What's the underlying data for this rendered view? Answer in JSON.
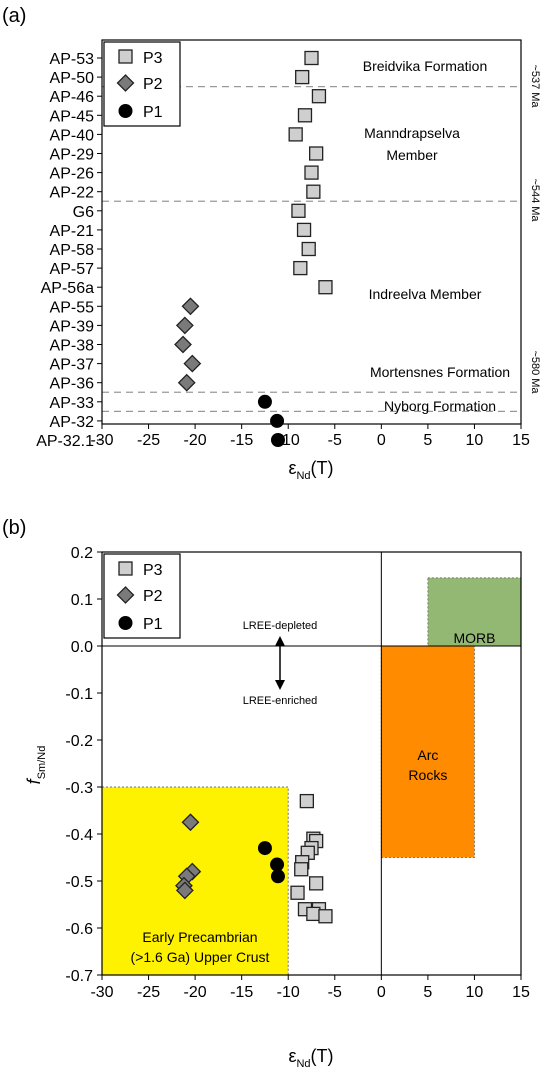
{
  "chart_data": [
    {
      "panel_label": "(a)",
      "type": "scatter",
      "xlabel": "εNd(T)",
      "xlabel_main": "ε",
      "xlabel_sub": "Nd",
      "xlabel_tail": "(T)",
      "xlim": [
        -30,
        15
      ],
      "xticks": [
        -30,
        -25,
        -20,
        -15,
        -10,
        -5,
        0,
        5,
        10,
        15
      ],
      "grid": false,
      "legend_position": "top-left",
      "samples": [
        "AP-53",
        "AP-50",
        "AP-46",
        "AP-45",
        "AP-40",
        "AP-29",
        "AP-26",
        "AP-22",
        "G6",
        "AP-21",
        "AP-58",
        "AP-57",
        "AP-56a",
        "AP-55",
        "AP-39",
        "AP-38",
        "AP-37",
        "AP-36",
        "AP-33",
        "AP-32",
        "AP-32.1"
      ],
      "series": [
        {
          "name": "P3",
          "marker": "square",
          "color": "#cfcfcf",
          "points": [
            [
              "AP-53",
              -7.5
            ],
            [
              "AP-50",
              -8.5
            ],
            [
              "AP-46",
              -6.7
            ],
            [
              "AP-45",
              -8.2
            ],
            [
              "AP-40",
              -9.2
            ],
            [
              "AP-29",
              -7.0
            ],
            [
              "AP-26",
              -7.5
            ],
            [
              "AP-22",
              -7.3
            ],
            [
              "G6",
              -8.9
            ],
            [
              "AP-21",
              -8.3
            ],
            [
              "AP-58",
              -7.8
            ],
            [
              "AP-57",
              -8.7
            ],
            [
              "AP-56a",
              -6.0
            ]
          ]
        },
        {
          "name": "P2",
          "marker": "diamond",
          "color": "#7a7a7a",
          "points": [
            [
              "AP-55",
              -20.5
            ],
            [
              "AP-39",
              -21.1
            ],
            [
              "AP-38",
              -21.3
            ],
            [
              "AP-37",
              -20.3
            ],
            [
              "AP-36",
              -20.9
            ]
          ]
        },
        {
          "name": "P1",
          "marker": "circle",
          "color": "#000000",
          "points": [
            [
              "AP-33",
              -12.5
            ],
            [
              "AP-32",
              -11.2
            ],
            [
              "AP-32.1",
              -11.1
            ]
          ]
        }
      ],
      "formation_labels": [
        "Breidvika Formation",
        "Manndrapselva",
        "Member",
        "Indreelva Member",
        "Mortensnes Formation",
        "Nyborg Formation"
      ],
      "age_labels": [
        "~537 Ma",
        "~544 Ma",
        "~580 Ma"
      ]
    },
    {
      "panel_label": "(b)",
      "type": "scatter",
      "xlabel": "εNd(T)",
      "xlabel_main": "ε",
      "xlabel_sub": "Nd",
      "xlabel_tail": "(T)",
      "ylabel": "fSm/Nd",
      "ylabel_main": "f",
      "ylabel_sub": "Sm/Nd",
      "xlim": [
        -30,
        15
      ],
      "ylim": [
        -0.7,
        0.2
      ],
      "xticks": [
        -30,
        -25,
        -20,
        -15,
        -10,
        -5,
        0,
        5,
        10,
        15
      ],
      "yticks": [
        "0.2",
        "0.1",
        "0.0",
        "-0.1",
        "-0.2",
        "-0.3",
        "-0.4",
        "-0.5",
        "-0.6",
        "-0.7"
      ],
      "grid": false,
      "legend_position": "top-left",
      "series": [
        {
          "name": "P3",
          "marker": "square",
          "color": "#cfcfcf",
          "points": [
            [
              -8.0,
              -0.33
            ],
            [
              -7.3,
              -0.41
            ],
            [
              -7.0,
              -0.415
            ],
            [
              -7.5,
              -0.43
            ],
            [
              -7.9,
              -0.44
            ],
            [
              -8.5,
              -0.46
            ],
            [
              -8.6,
              -0.475
            ],
            [
              -7.0,
              -0.505
            ],
            [
              -9.0,
              -0.525
            ],
            [
              -8.2,
              -0.56
            ],
            [
              -6.7,
              -0.56
            ],
            [
              -7.3,
              -0.57
            ],
            [
              -6.0,
              -0.575
            ]
          ]
        },
        {
          "name": "P2",
          "marker": "diamond",
          "color": "#7a7a7a",
          "points": [
            [
              -20.5,
              -0.375
            ],
            [
              -20.3,
              -0.48
            ],
            [
              -20.9,
              -0.49
            ],
            [
              -21.2,
              -0.51
            ],
            [
              -21.1,
              -0.52
            ]
          ]
        },
        {
          "name": "P1",
          "marker": "circle",
          "color": "#000000",
          "points": [
            [
              -12.5,
              -0.43
            ],
            [
              -11.2,
              -0.465
            ],
            [
              -11.1,
              -0.49
            ]
          ]
        }
      ],
      "regions": [
        {
          "name": "Early Precambrian (>1.6 Ga) Upper Crust",
          "lines": [
            "Early Precambrian",
            "(>1.6 Ga) Upper Crust"
          ],
          "x": [
            -30,
            -10
          ],
          "y": [
            -0.7,
            -0.3
          ],
          "color": "#fff200"
        },
        {
          "name": "Arc Rocks",
          "lines": [
            "Arc",
            "Rocks"
          ],
          "x": [
            0,
            10
          ],
          "y": [
            -0.45,
            0.0
          ],
          "color": "#ff8c00"
        },
        {
          "name": "MORB",
          "lines": [
            "MORB"
          ],
          "x": [
            5,
            15
          ],
          "y": [
            0.0,
            0.145
          ],
          "color": "#93b874"
        }
      ],
      "annotations": [
        "LREE-depleted",
        "LREE-enriched"
      ]
    }
  ]
}
